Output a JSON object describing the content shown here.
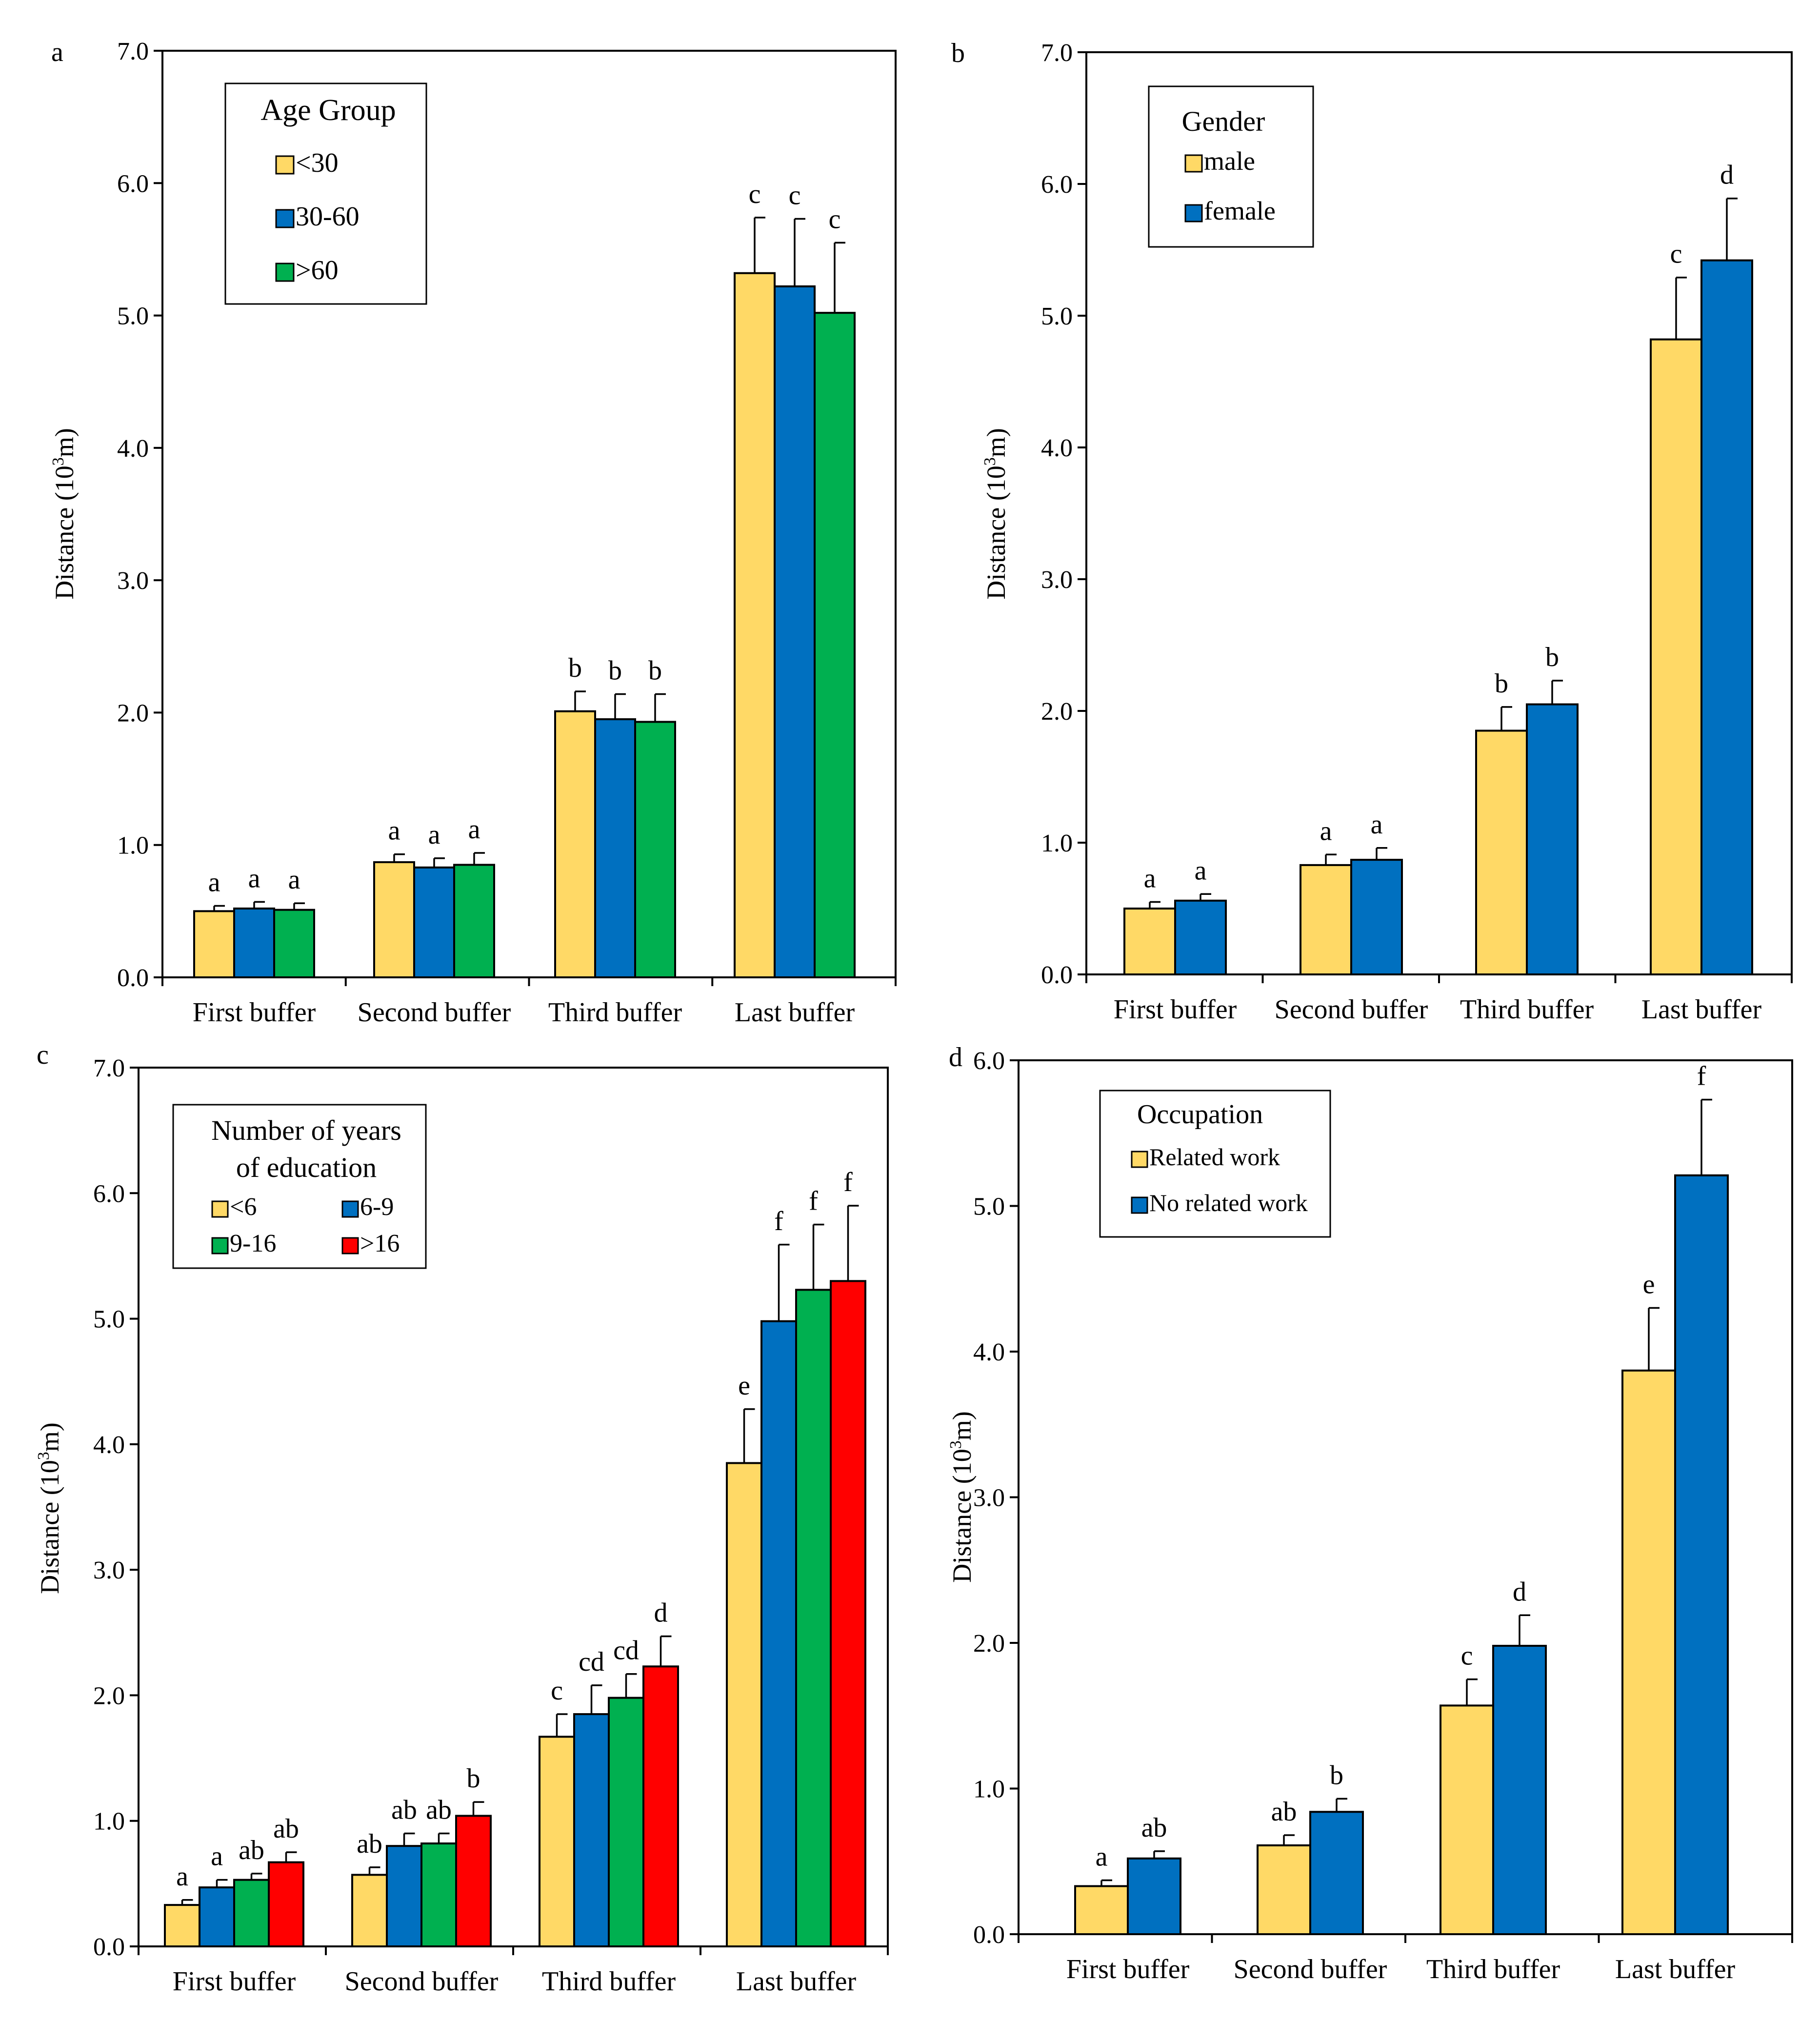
{
  "figure": {
    "description_hidden": false
  },
  "chart_data": [
    {
      "id": "a",
      "panel_label": "a",
      "type": "bar",
      "ylabel_main": "Distance (10",
      "ylabel_sup": "3",
      "ylabel_tail": "m)",
      "ylim": [
        0,
        7
      ],
      "yticks": [
        "0.0",
        "1.0",
        "2.0",
        "3.0",
        "4.0",
        "5.0",
        "6.0",
        "7.0"
      ],
      "categories": [
        "First buffer",
        "Second buffer",
        "Third buffer",
        "Last buffer"
      ],
      "legend_title": [
        "Age Group"
      ],
      "legend_position": "top-left",
      "series": [
        {
          "name": "<30",
          "color": "#FFD966",
          "values": [
            0.5,
            0.87,
            2.01,
            5.32
          ],
          "errors": [
            0.04,
            0.06,
            0.15,
            0.42
          ],
          "letters": [
            "a",
            "a",
            "b",
            "c"
          ]
        },
        {
          "name": "30-60",
          "color": "#0070C0",
          "values": [
            0.52,
            0.83,
            1.95,
            5.22
          ],
          "errors": [
            0.05,
            0.07,
            0.19,
            0.51
          ],
          "letters": [
            "a",
            "a",
            "b",
            "c"
          ]
        },
        {
          "name": ">60",
          "color": "#00B050",
          "values": [
            0.51,
            0.85,
            1.93,
            5.02
          ],
          "errors": [
            0.05,
            0.09,
            0.21,
            0.53
          ],
          "letters": [
            "a",
            "a",
            "b",
            "c"
          ]
        }
      ]
    },
    {
      "id": "b",
      "panel_label": "b",
      "type": "bar",
      "ylabel_main": "Distance (10",
      "ylabel_sup": "3",
      "ylabel_tail": "m)",
      "ylim": [
        0,
        7
      ],
      "yticks": [
        "0.0",
        "1.0",
        "2.0",
        "3.0",
        "4.0",
        "5.0",
        "6.0",
        "7.0"
      ],
      "categories": [
        "First buffer",
        "Second buffer",
        "Third buffer",
        "Last buffer"
      ],
      "legend_title": [
        "Gender"
      ],
      "legend_position": "top-left",
      "series": [
        {
          "name": "male",
          "color": "#FFD966",
          "values": [
            0.5,
            0.83,
            1.85,
            4.82
          ],
          "errors": [
            0.05,
            0.08,
            0.18,
            0.47
          ],
          "letters": [
            "a",
            "a",
            "b",
            "c"
          ]
        },
        {
          "name": "female",
          "color": "#0070C0",
          "values": [
            0.56,
            0.87,
            2.05,
            5.42
          ],
          "errors": [
            0.05,
            0.09,
            0.18,
            0.47
          ],
          "letters": [
            "a",
            "a",
            "b",
            "d"
          ]
        }
      ]
    },
    {
      "id": "c",
      "panel_label": "c",
      "type": "bar",
      "ylabel_main": "Distance (10",
      "ylabel_sup": "3",
      "ylabel_tail": "m)",
      "ylim": [
        0,
        7
      ],
      "yticks": [
        "0.0",
        "1.0",
        "2.0",
        "3.0",
        "4.0",
        "5.0",
        "6.0",
        "7.0"
      ],
      "categories": [
        "First buffer",
        "Second buffer",
        "Third buffer",
        "Last buffer"
      ],
      "legend_title": [
        "Number of years",
        "of education"
      ],
      "legend_position": "top-left",
      "series": [
        {
          "name": "<6",
          "color": "#FFD966",
          "values": [
            0.33,
            0.57,
            1.67,
            3.85
          ],
          "errors": [
            0.04,
            0.06,
            0.18,
            0.43
          ],
          "letters": [
            "a",
            "ab",
            "c",
            "e"
          ]
        },
        {
          "name": "6-9",
          "color": "#0070C0",
          "values": [
            0.47,
            0.8,
            1.85,
            4.98
          ],
          "errors": [
            0.06,
            0.1,
            0.23,
            0.61
          ],
          "letters": [
            "a",
            "ab",
            "cd",
            "f"
          ]
        },
        {
          "name": "9-16",
          "color": "#00B050",
          "values": [
            0.53,
            0.82,
            1.98,
            5.23
          ],
          "errors": [
            0.05,
            0.08,
            0.19,
            0.52
          ],
          "letters": [
            "ab",
            "ab",
            "cd",
            "f"
          ]
        },
        {
          "name": ">16",
          "color": "#FF0000",
          "values": [
            0.67,
            1.04,
            2.23,
            5.3
          ],
          "errors": [
            0.08,
            0.11,
            0.24,
            0.6
          ],
          "letters": [
            "ab",
            "b",
            "d",
            "f"
          ]
        }
      ]
    },
    {
      "id": "d",
      "panel_label": "d",
      "type": "bar",
      "ylabel_main": "Distance (10",
      "ylabel_sup": "3",
      "ylabel_tail": "m)",
      "ylim": [
        0,
        6
      ],
      "yticks": [
        "0.0",
        "1.0",
        "2.0",
        "3.0",
        "4.0",
        "5.0",
        "6.0"
      ],
      "categories": [
        "First buffer",
        "Second buffer",
        "Third buffer",
        "Last buffer"
      ],
      "legend_title": [
        "Occupation"
      ],
      "legend_position": "top-left",
      "series": [
        {
          "name": "Related work",
          "color": "#FFD966",
          "values": [
            0.33,
            0.61,
            1.57,
            3.87
          ],
          "errors": [
            0.04,
            0.07,
            0.18,
            0.43
          ],
          "letters": [
            "a",
            "ab",
            "c",
            "e"
          ]
        },
        {
          "name": "No related work",
          "color": "#0070C0",
          "values": [
            0.52,
            0.84,
            1.98,
            5.21
          ],
          "errors": [
            0.05,
            0.09,
            0.21,
            0.52
          ],
          "letters": [
            "ab",
            "b",
            "d",
            "f"
          ]
        }
      ]
    }
  ]
}
